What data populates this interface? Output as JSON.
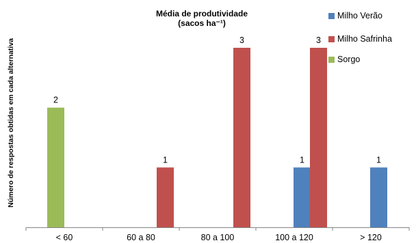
{
  "chart_data": {
    "type": "bar",
    "title": "Média de produtividade",
    "subtitle": "(sacos ha⁻¹)",
    "ylabel": "Número de respostas obtidas em cada alternativa",
    "xlabel": "",
    "categories": [
      "< 60",
      "60 a 80",
      "80 a 100",
      "100 a 120",
      "> 120"
    ],
    "ylim": [
      0,
      3.3
    ],
    "grid": false,
    "legend_position": "top-right",
    "series": [
      {
        "name": "Milho Verão",
        "color": "#4F81BD",
        "values": [
          0,
          0,
          0,
          1,
          1
        ]
      },
      {
        "name": "Milho Safrinha",
        "color": "#C0504D",
        "values": [
          0,
          1,
          3,
          3,
          0
        ]
      },
      {
        "name": "Sorgo",
        "color": "#9BBB59",
        "values": [
          2,
          0,
          0,
          0,
          0
        ]
      }
    ]
  }
}
